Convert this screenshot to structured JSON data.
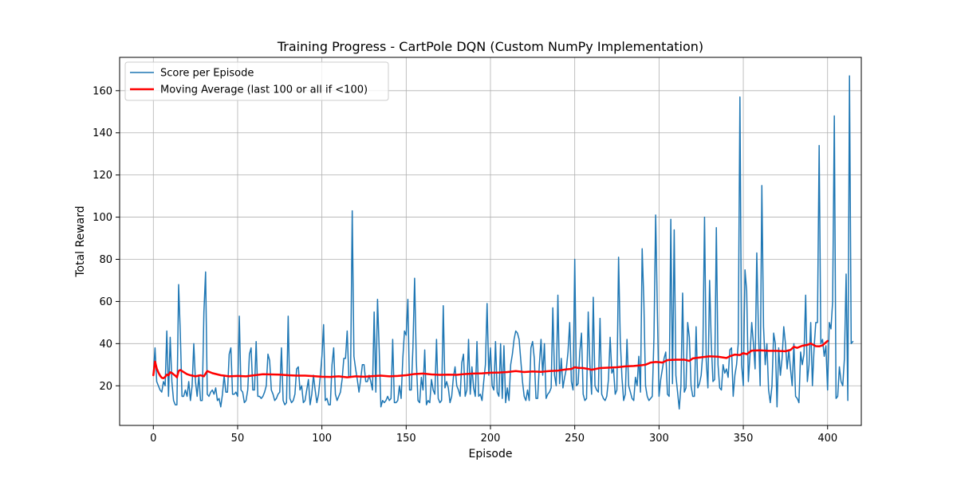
{
  "chart_data": {
    "type": "line",
    "title": "Training Progress - CartPole DQN (Custom NumPy Implementation)",
    "xlabel": "Episode",
    "ylabel": "Total Reward",
    "xlim": [
      -20,
      420
    ],
    "ylim": [
      1.2,
      175.8
    ],
    "x_ticks": [
      0,
      50,
      100,
      150,
      200,
      250,
      300,
      350,
      400
    ],
    "y_ticks": [
      20,
      40,
      60,
      80,
      100,
      120,
      140,
      160
    ],
    "grid": true,
    "legend_position": "top-left",
    "series": [
      {
        "name": "Score per Episode",
        "color": "#1f77b4",
        "line_width": 1.5,
        "x_start": 0,
        "values": [
          25,
          38,
          22,
          20,
          18,
          17,
          22,
          20,
          46,
          15,
          43,
          22,
          13,
          11,
          11,
          68,
          45,
          15,
          15,
          18,
          15,
          22,
          13,
          20,
          40,
          22,
          15,
          25,
          13,
          13,
          55,
          74,
          16,
          15,
          17,
          18,
          16,
          19,
          13,
          14,
          10,
          16,
          25,
          17,
          17,
          35,
          38,
          16,
          16,
          17,
          15,
          53,
          18,
          17,
          12,
          13,
          18,
          35,
          38,
          18,
          18,
          41,
          15,
          15,
          14,
          15,
          17,
          20,
          35,
          32,
          18,
          16,
          13,
          14,
          16,
          17,
          38,
          13,
          11,
          12,
          53,
          14,
          12,
          13,
          16,
          28,
          29,
          18,
          20,
          12,
          13,
          18,
          23,
          11,
          16,
          25,
          18,
          12,
          16,
          24,
          34,
          49,
          13,
          14,
          11,
          11,
          30,
          38,
          16,
          13,
          15,
          17,
          23,
          33,
          33,
          46,
          24,
          24,
          103,
          34,
          28,
          23,
          17,
          23,
          30,
          30,
          22,
          22,
          25,
          22,
          18,
          55,
          17,
          61,
          37,
          10,
          13,
          12,
          13,
          15,
          13,
          14,
          42,
          12,
          12,
          13,
          20,
          14,
          33,
          46,
          44,
          61,
          18,
          18,
          38,
          71,
          32,
          13,
          12,
          24,
          18,
          37,
          11,
          13,
          12,
          23,
          18,
          16,
          42,
          14,
          12,
          13,
          58,
          19,
          22,
          19,
          12,
          15,
          24,
          29,
          20,
          18,
          15,
          31,
          35,
          15,
          18,
          42,
          16,
          29,
          19,
          15,
          41,
          15,
          16,
          13,
          22,
          30,
          59,
          25,
          38,
          20,
          18,
          41,
          17,
          15,
          40,
          14,
          39,
          12,
          19,
          13,
          30,
          35,
          42,
          46,
          45,
          42,
          32,
          22,
          15,
          13,
          18,
          13,
          38,
          41,
          33,
          14,
          14,
          30,
          42,
          25,
          40,
          14,
          16,
          17,
          19,
          57,
          25,
          20,
          63,
          21,
          33,
          19,
          24,
          28,
          36,
          50,
          22,
          18,
          80,
          20,
          21,
          36,
          45,
          16,
          13,
          14,
          55,
          30,
          16,
          62,
          20,
          18,
          17,
          52,
          16,
          14,
          13,
          15,
          23,
          43,
          26,
          28,
          16,
          18,
          81,
          42,
          24,
          13,
          16,
          42,
          20,
          17,
          14,
          13,
          24,
          20,
          34,
          17,
          85,
          60,
          20,
          15,
          13,
          14,
          15,
          43,
          101,
          56,
          15,
          23,
          28,
          33,
          36,
          16,
          15,
          99,
          21,
          94,
          25,
          17,
          9,
          20,
          64,
          17,
          19,
          50,
          43,
          20,
          15,
          15,
          48,
          19,
          21,
          25,
          36,
          100,
          32,
          19,
          70,
          40,
          22,
          23,
          95,
          30,
          19,
          18,
          30,
          26,
          28,
          24,
          37,
          38,
          15,
          25,
          30,
          40,
          157,
          30,
          20,
          75,
          65,
          22,
          35,
          50,
          40,
          28,
          83,
          45,
          20,
          115,
          48,
          30,
          40,
          18,
          12,
          20,
          45,
          40,
          10,
          38,
          25,
          33,
          48,
          40,
          28,
          37,
          28,
          20,
          40,
          15,
          14,
          12,
          36,
          30,
          35,
          63,
          22,
          30,
          50,
          20,
          38,
          50,
          50,
          134,
          40,
          42,
          34,
          39,
          18,
          50,
          47,
          60,
          148,
          14,
          15,
          29,
          22,
          20,
          33,
          73,
          13,
          167,
          40,
          41
        ]
      },
      {
        "name": "Moving Average (last 100 or all if <100)",
        "color": "#ff0000",
        "line_width": 2.5,
        "x": [
          0,
          1,
          2,
          3,
          4,
          5,
          6,
          7,
          8,
          9,
          10,
          11,
          12,
          13,
          14,
          15,
          16,
          18,
          20,
          22,
          25,
          28,
          30,
          32,
          35,
          40,
          45,
          50,
          55,
          60,
          65,
          70,
          75,
          80,
          85,
          90,
          95,
          100,
          105,
          110,
          115,
          120,
          125,
          130,
          135,
          140,
          145,
          150,
          155,
          160,
          165,
          170,
          175,
          180,
          185,
          190,
          195,
          200,
          205,
          210,
          215,
          220,
          225,
          230,
          235,
          240,
          245,
          248,
          250,
          252,
          255,
          258,
          260,
          265,
          270,
          275,
          280,
          285,
          290,
          292,
          295,
          298,
          300,
          302,
          305,
          310,
          315,
          318,
          320,
          325,
          330,
          335,
          340,
          342,
          345,
          348,
          350,
          352,
          355,
          360,
          365,
          370,
          372,
          375,
          378,
          380,
          382,
          385,
          388,
          390,
          393,
          395,
          397,
          400
        ],
        "values": [
          25,
          31.5,
          28.3,
          26.3,
          24.8,
          23.8,
          23.6,
          24.2,
          25.3,
          25.0,
          26.4,
          26.1,
          25.4,
          24.8,
          24.0,
          27.0,
          27.5,
          26.5,
          25.5,
          25.0,
          24.5,
          25.0,
          24.5,
          27.0,
          26.0,
          25.0,
          24.5,
          24.7,
          24.5,
          25.0,
          25.5,
          25.4,
          25.3,
          25.0,
          24.8,
          24.8,
          24.6,
          24.3,
          24.2,
          24.5,
          24.0,
          24.5,
          24.3,
          24.6,
          24.8,
          24.5,
          24.7,
          25.0,
          25.6,
          25.8,
          25.4,
          25.2,
          25.3,
          25.2,
          25.6,
          25.8,
          25.9,
          26.2,
          26.3,
          26.5,
          27.0,
          26.5,
          26.8,
          26.6,
          27.0,
          27.2,
          27.8,
          28.0,
          28.8,
          28.5,
          28.4,
          28.0,
          27.6,
          28.4,
          28.6,
          28.8,
          29.2,
          29.4,
          29.8,
          30.0,
          31.0,
          31.3,
          31.2,
          31.0,
          32.2,
          32.4,
          32.4,
          31.8,
          33.0,
          33.5,
          34.0,
          33.8,
          33.2,
          34.0,
          34.8,
          34.6,
          35.5,
          35.0,
          36.7,
          36.8,
          36.6,
          36.6,
          36.5,
          36.4,
          37.0,
          38.5,
          38.0,
          39.0,
          39.4,
          40.1,
          38.8,
          38.7,
          39.2,
          41.3
        ]
      }
    ]
  }
}
